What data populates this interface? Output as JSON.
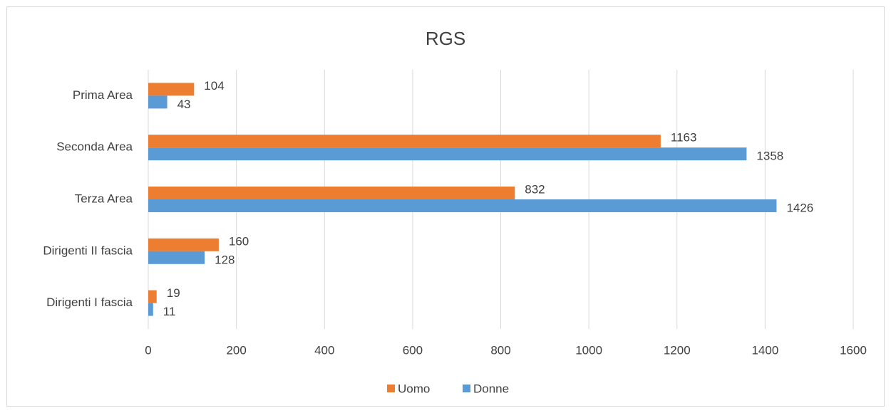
{
  "chart_data": {
    "type": "hbar",
    "title": "RGS",
    "categories": [
      "Prima Area",
      "Seconda Area",
      "Terza Area",
      "Dirigenti II fascia",
      "Dirigenti I fascia"
    ],
    "series": [
      {
        "name": "Uomo",
        "color": "#ed7d31",
        "values": [
          104,
          1163,
          832,
          160,
          19
        ]
      },
      {
        "name": "Donne",
        "color": "#5b9bd5",
        "values": [
          43,
          1358,
          1426,
          128,
          11
        ]
      }
    ],
    "xlim": [
      0,
      1600
    ],
    "xticks": [
      0,
      200,
      400,
      600,
      800,
      1000,
      1200,
      1400,
      1600
    ],
    "grid": true,
    "legend": "bottom"
  }
}
